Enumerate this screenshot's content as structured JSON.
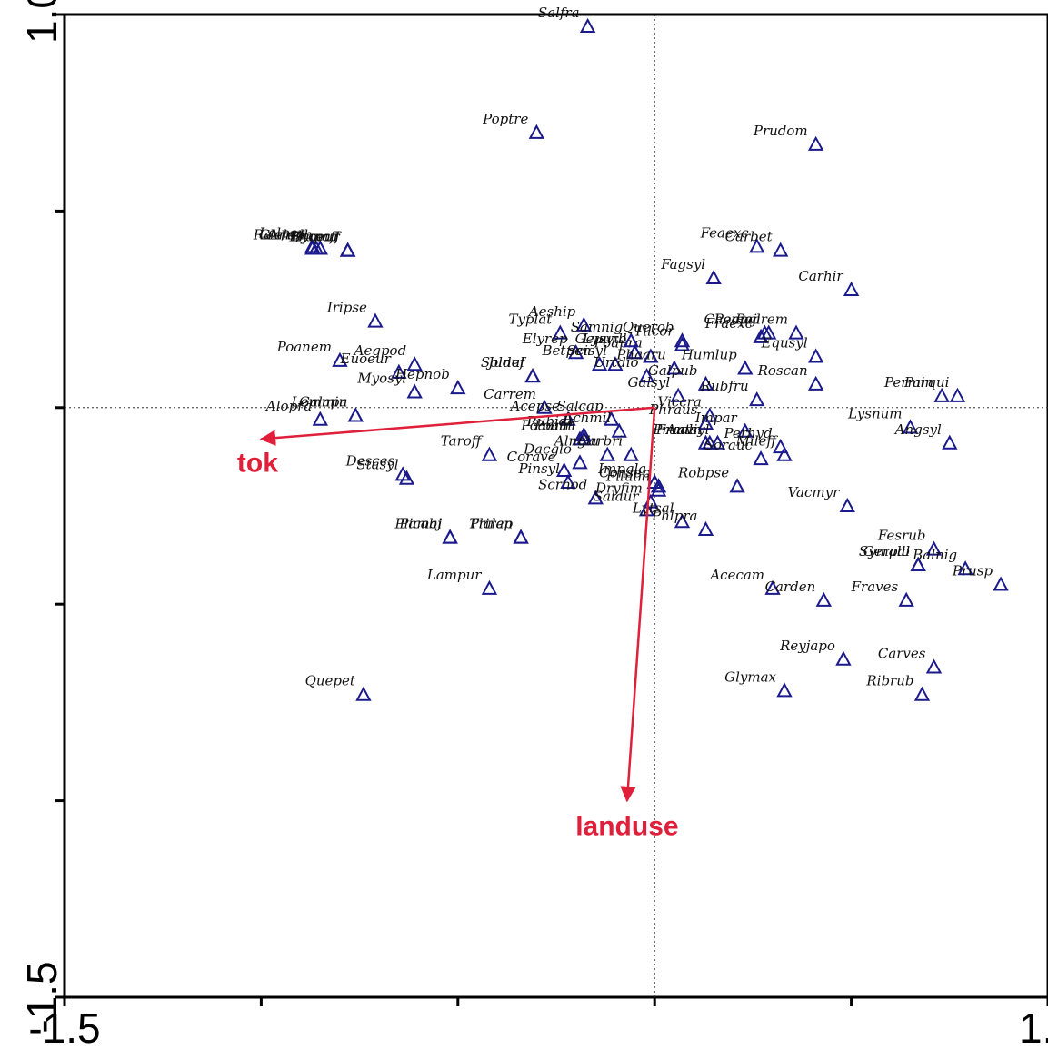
{
  "chart_data": {
    "type": "scatter",
    "title": "",
    "xlabel": "",
    "ylabel": "",
    "xlim": [
      -1.5,
      1.0
    ],
    "ylim": [
      -1.5,
      1.0
    ],
    "x_tick_labels": [
      {
        "value": -1.5,
        "text": "-1.5"
      },
      {
        "value": 1.0,
        "text": "1.0"
      }
    ],
    "y_tick_labels": [
      {
        "value": 1.0,
        "text": "1.0"
      },
      {
        "value": -1.5,
        "text": "-1.5"
      }
    ],
    "x_ticks": [
      -1.5,
      -1.0,
      -0.5,
      0.0,
      0.5,
      1.0
    ],
    "y_ticks": [
      1.0,
      0.5,
      0.0,
      -0.5,
      -1.0,
      -1.5
    ],
    "zero_lines": true,
    "grid": false,
    "colors": {
      "points": "#1a1a8c",
      "vectors": "#e0203a",
      "labels": "#111111"
    },
    "vectors": [
      {
        "name": "tok",
        "x": -1.0,
        "y": -0.08
      },
      {
        "name": "landuse",
        "x": -0.07,
        "y": -1.0
      }
    ],
    "points": [
      {
        "name": "Salfra",
        "x": -0.17,
        "y": 0.97
      },
      {
        "name": "Poptre",
        "x": -0.3,
        "y": 0.7
      },
      {
        "name": "Prudom",
        "x": 0.41,
        "y": 0.67
      },
      {
        "name": "Lolper",
        "x": -0.87,
        "y": 0.41
      },
      {
        "name": "Ranrep",
        "x": -0.87,
        "y": 0.405
      },
      {
        "name": "Glehed",
        "x": -0.86,
        "y": 0.405
      },
      {
        "name": "Arrela",
        "x": -0.85,
        "y": 0.405
      },
      {
        "name": "Symoff",
        "x": -0.78,
        "y": 0.4
      },
      {
        "name": "Lyceur",
        "x": -0.78,
        "y": 0.4
      },
      {
        "name": "Prupad",
        "x": -0.78,
        "y": 0.4
      },
      {
        "name": "Feaexc",
        "x": 0.26,
        "y": 0.41
      },
      {
        "name": "Carbet",
        "x": 0.32,
        "y": 0.4
      },
      {
        "name": "Fagsyl",
        "x": 0.15,
        "y": 0.33
      },
      {
        "name": "Carhir",
        "x": 0.5,
        "y": 0.3
      },
      {
        "name": "Geuurb",
        "x": -0.05,
        "y": 0.14
      },
      {
        "name": "Lysvul",
        "x": -0.05,
        "y": 0.14
      },
      {
        "name": "Poapra",
        "x": -0.01,
        "y": 0.13
      },
      {
        "name": "Iripse",
        "x": -0.71,
        "y": 0.22
      },
      {
        "name": "Typlat",
        "x": -0.24,
        "y": 0.19
      },
      {
        "name": "Aeship",
        "x": -0.18,
        "y": 0.21
      },
      {
        "name": "Samnig",
        "x": -0.06,
        "y": 0.17
      },
      {
        "name": "Querob",
        "x": 0.07,
        "y": 0.17
      },
      {
        "name": "Chemaj",
        "x": 0.28,
        "y": 0.19
      },
      {
        "name": "Poarem",
        "x": 0.36,
        "y": 0.19
      },
      {
        "name": "Poapal",
        "x": 0.29,
        "y": 0.19
      },
      {
        "name": "Aegpod",
        "x": -0.61,
        "y": 0.11
      },
      {
        "name": "Elyrep",
        "x": -0.2,
        "y": 0.14
      },
      {
        "name": "Tilcor",
        "x": 0.07,
        "y": 0.16
      },
      {
        "name": "Fraexc",
        "x": 0.27,
        "y": 0.18
      },
      {
        "name": "Equsyl",
        "x": 0.41,
        "y": 0.13
      },
      {
        "name": "Poanem",
        "x": -0.8,
        "y": 0.12
      },
      {
        "name": "Euoeur",
        "x": -0.65,
        "y": 0.09
      },
      {
        "name": "Soldul",
        "x": -0.31,
        "y": 0.08
      },
      {
        "name": "Junef",
        "x": -0.31,
        "y": 0.08
      },
      {
        "name": "Betpen",
        "x": -0.14,
        "y": 0.11
      },
      {
        "name": "Scisyl",
        "x": -0.1,
        "y": 0.11
      },
      {
        "name": "Phaaru",
        "x": 0.05,
        "y": 0.1
      },
      {
        "name": "Hepnob",
        "x": -0.5,
        "y": 0.05
      },
      {
        "name": "Myosyl",
        "x": -0.61,
        "y": 0.04
      },
      {
        "name": "Galpub",
        "x": 0.13,
        "y": 0.06
      },
      {
        "name": "Humlup",
        "x": 0.23,
        "y": 0.1
      },
      {
        "name": "Roscan",
        "x": 0.41,
        "y": 0.06
      },
      {
        "name": "Urtdio",
        "x": -0.02,
        "y": 0.08
      },
      {
        "name": "Galsyl",
        "x": 0.06,
        "y": 0.03
      },
      {
        "name": "Rubfru",
        "x": 0.26,
        "y": 0.02
      },
      {
        "name": "Permin",
        "x": 0.73,
        "y": 0.03
      },
      {
        "name": "Parqui",
        "x": 0.77,
        "y": 0.03
      },
      {
        "name": "Alopra",
        "x": -0.85,
        "y": -0.03
      },
      {
        "name": "Lemmin",
        "x": -0.76,
        "y": -0.02
      },
      {
        "name": "Galapa",
        "x": -0.76,
        "y": -0.02
      },
      {
        "name": "Carrem",
        "x": -0.28,
        "y": 0.0
      },
      {
        "name": "Acepse",
        "x": -0.22,
        "y": -0.03
      },
      {
        "name": "Salcap",
        "x": -0.11,
        "y": -0.03
      },
      {
        "name": "Viccra",
        "x": 0.14,
        "y": -0.02
      },
      {
        "name": "Phraus",
        "x": 0.13,
        "y": -0.04
      },
      {
        "name": "Lysnum",
        "x": 0.65,
        "y": -0.05
      },
      {
        "name": "Poatri",
        "x": -0.18,
        "y": -0.08
      },
      {
        "name": "Poaann",
        "x": -0.19,
        "y": -0.08
      },
      {
        "name": "Achmil",
        "x": -0.09,
        "y": -0.06
      },
      {
        "name": "Carbri",
        "x": -0.06,
        "y": -0.12
      },
      {
        "name": "Fraaln",
        "x": 0.14,
        "y": -0.09
      },
      {
        "name": "Impar",
        "x": 0.23,
        "y": -0.06
      },
      {
        "name": "Perhyd",
        "x": 0.32,
        "y": -0.1
      },
      {
        "name": "Mileff",
        "x": 0.33,
        "y": -0.12
      },
      {
        "name": "Angsyl",
        "x": 0.75,
        "y": -0.09
      },
      {
        "name": "Taroff",
        "x": -0.42,
        "y": -0.12
      },
      {
        "name": "Rubide",
        "x": -0.18,
        "y": -0.07
      },
      {
        "name": "Dacglo",
        "x": -0.19,
        "y": -0.14
      },
      {
        "name": "Alnglu",
        "x": -0.12,
        "y": -0.12
      },
      {
        "name": "Antsyl",
        "x": 0.16,
        "y": -0.09
      },
      {
        "name": "Pruavi",
        "x": 0.13,
        "y": -0.09
      },
      {
        "name": "Sorauc",
        "x": 0.27,
        "y": -0.13
      },
      {
        "name": "Desces",
        "x": -0.64,
        "y": -0.17
      },
      {
        "name": "Stasyl",
        "x": -0.63,
        "y": -0.18
      },
      {
        "name": "Corave",
        "x": -0.23,
        "y": -0.16
      },
      {
        "name": "Pinsyl",
        "x": -0.22,
        "y": -0.19
      },
      {
        "name": "Impgla",
        "x": 0.0,
        "y": -0.19
      },
      {
        "name": "Consep",
        "x": 0.01,
        "y": -0.2
      },
      {
        "name": "Filulm",
        "x": 0.01,
        "y": -0.21
      },
      {
        "name": "Robpse",
        "x": 0.21,
        "y": -0.2
      },
      {
        "name": "Scrnod",
        "x": -0.15,
        "y": -0.23
      },
      {
        "name": "Dryfim",
        "x": -0.01,
        "y": -0.24
      },
      {
        "name": "Salaur",
        "x": -0.02,
        "y": -0.26
      },
      {
        "name": "Vacmyr",
        "x": 0.49,
        "y": -0.25
      },
      {
        "name": "Lytsal",
        "x": 0.07,
        "y": -0.29
      },
      {
        "name": "Phlpra",
        "x": 0.13,
        "y": -0.31
      },
      {
        "name": "Plamaj",
        "x": -0.52,
        "y": -0.33
      },
      {
        "name": "Plalan",
        "x": -0.34,
        "y": -0.33
      },
      {
        "name": "Picabi",
        "x": -0.52,
        "y": -0.33
      },
      {
        "name": "Trirep",
        "x": -0.34,
        "y": -0.33
      },
      {
        "name": "Fesrub",
        "x": 0.71,
        "y": -0.36
      },
      {
        "name": "Symalb",
        "x": 0.67,
        "y": -0.4
      },
      {
        "name": "Gerpal",
        "x": 0.67,
        "y": -0.4
      },
      {
        "name": "Balnig",
        "x": 0.79,
        "y": -0.41
      },
      {
        "name": "Lampur",
        "x": -0.42,
        "y": -0.46
      },
      {
        "name": "Acecam",
        "x": 0.3,
        "y": -0.46
      },
      {
        "name": "Carden",
        "x": 0.43,
        "y": -0.49
      },
      {
        "name": "Fraves",
        "x": 0.64,
        "y": -0.49
      },
      {
        "name": "Prusp",
        "x": 0.88,
        "y": -0.45
      },
      {
        "name": "Reyjapo",
        "x": 0.48,
        "y": -0.64
      },
      {
        "name": "Carves",
        "x": 0.71,
        "y": -0.66
      },
      {
        "name": "Glymax",
        "x": 0.33,
        "y": -0.72
      },
      {
        "name": "Ribrub",
        "x": 0.68,
        "y": -0.73
      },
      {
        "name": "Quepet",
        "x": -0.74,
        "y": -0.73
      }
    ]
  }
}
